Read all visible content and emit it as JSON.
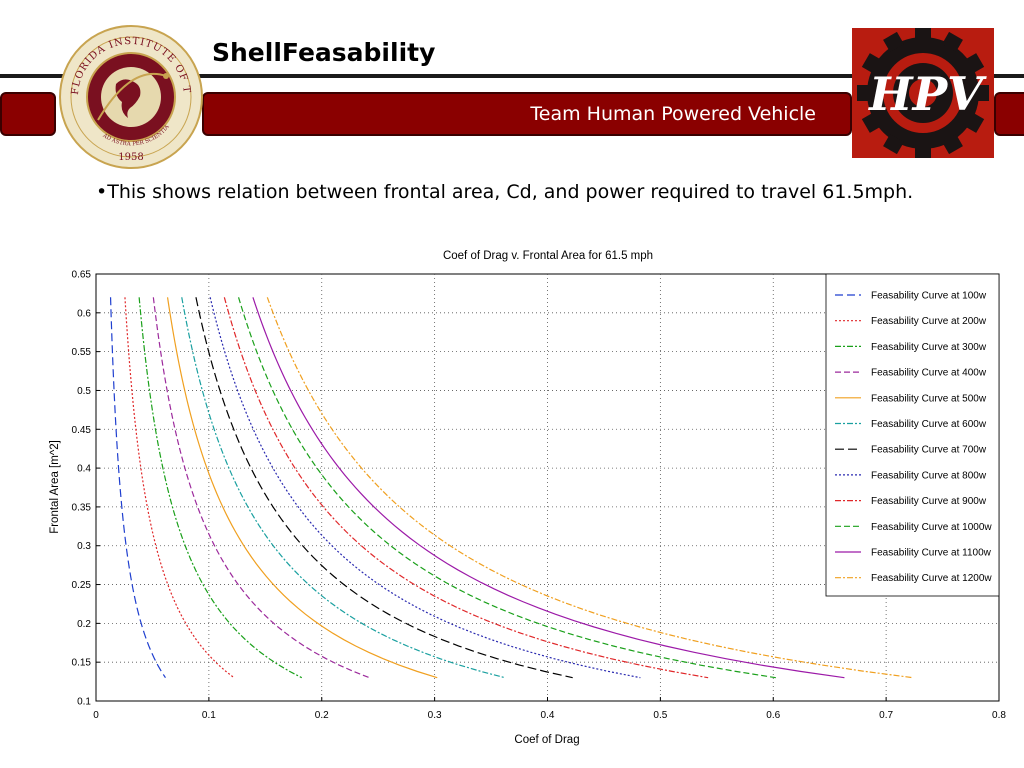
{
  "header": {
    "title": "ShellFeasability",
    "subtitle": "Team Human Powered Vehicle"
  },
  "logos": {
    "seal_text": "FLORIDA INSTITUTE OF TECHNOLOGY",
    "seal_motto": "AD ASTRA PER SCIENTIAM",
    "seal_year": "1958",
    "hpv_text": "HPV"
  },
  "body": {
    "bullet": "•This shows relation between frontal area, Cd, and power required to travel 61.5mph."
  },
  "colors": {
    "band": "#8a0000",
    "band_border": "#3a0000",
    "seal_ring": "#7a1020",
    "seal_gold": "#c8a450"
  },
  "chart_data": {
    "type": "line",
    "title": "Coef of Drag v. Frontal Area for 61.5 mph",
    "xlabel": "Coef of Drag",
    "ylabel": "Frontal Area [m^2]",
    "xlim": [
      0,
      0.8
    ],
    "ylim": [
      0.1,
      0.65
    ],
    "xticks": [
      "0",
      "0.1",
      "0.2",
      "0.3",
      "0.4",
      "0.5",
      "0.6",
      "0.7",
      "0.8"
    ],
    "yticks": [
      "0.1",
      "0.15",
      "0.2",
      "0.25",
      "0.3",
      "0.35",
      "0.4",
      "0.45",
      "0.5",
      "0.55",
      "0.6",
      "0.65"
    ],
    "grid": true,
    "legend_position": "top-right",
    "area_range": [
      0.13,
      0.62
    ],
    "series": [
      {
        "name": "Feasability Curve at 100w",
        "color": "#1f3fcf",
        "dash": "8 4",
        "cd_area": 0.008
      },
      {
        "name": "Feasability Curve at 200w",
        "color": "#e0282a",
        "dash": "2 2",
        "cd_area": 0.0159
      },
      {
        "name": "Feasability Curve at 300w",
        "color": "#1aa01a",
        "dash": "6 2 2 2",
        "cd_area": 0.0237
      },
      {
        "name": "Feasability Curve at 400w",
        "color": "#9c2a9c",
        "dash": "6 3",
        "cd_area": 0.0315
      },
      {
        "name": "Feasability Curve at 500w",
        "color": "#f0a020",
        "dash": "",
        "cd_area": 0.0393
      },
      {
        "name": "Feasability Curve at 600w",
        "color": "#1aa0a0",
        "dash": "6 2 2 2",
        "cd_area": 0.0471
      },
      {
        "name": "Feasability Curve at 700w",
        "color": "#000000",
        "dash": "9 4",
        "cd_area": 0.0549
      },
      {
        "name": "Feasability Curve at 800w",
        "color": "#2a2ab0",
        "dash": "2 2",
        "cd_area": 0.0627
      },
      {
        "name": "Feasability Curve at 900w",
        "color": "#e0282a",
        "dash": "6 2 2 2",
        "cd_area": 0.0705
      },
      {
        "name": "Feasability Curve at 1000w",
        "color": "#1aa01a",
        "dash": "6 3",
        "cd_area": 0.0783
      },
      {
        "name": "Feasability Curve at 1100w",
        "color": "#9c1aa8",
        "dash": "",
        "cd_area": 0.0862
      },
      {
        "name": "Feasability Curve at 1200w",
        "color": "#f0a020",
        "dash": "6 2 2 2",
        "cd_area": 0.0941
      }
    ]
  }
}
